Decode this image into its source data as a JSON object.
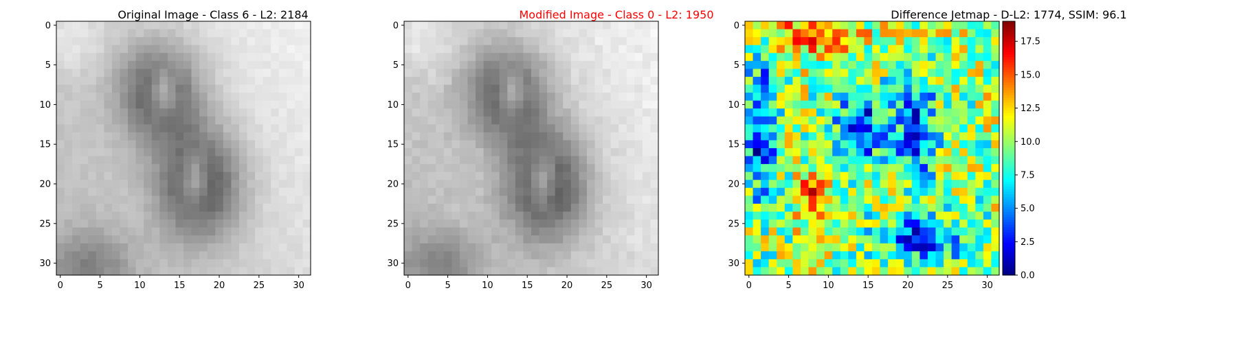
{
  "colors": {
    "title_normal": "#000000",
    "title_modified": "#ff0000"
  },
  "chart_data": [
    {
      "type": "heatmap",
      "title": "Original Image - Class 6 - L2: 2184",
      "colormap": "gray",
      "grid": false,
      "xlim": [
        -0.5,
        31.5
      ],
      "ylim": [
        31.5,
        -0.5
      ],
      "xticks": [
        0,
        5,
        10,
        15,
        20,
        25,
        30
      ],
      "yticks": [
        0,
        5,
        10,
        15,
        20,
        25,
        30
      ],
      "image_size": [
        32,
        32
      ],
      "value_range": [
        0,
        255
      ]
    },
    {
      "type": "heatmap",
      "title": "Modified Image - Class 0 - L2: 1950",
      "title_color": "#ff0000",
      "colormap": "gray",
      "grid": false,
      "xlim": [
        -0.5,
        31.5
      ],
      "ylim": [
        31.5,
        -0.5
      ],
      "xticks": [
        0,
        5,
        10,
        15,
        20,
        25,
        30
      ],
      "yticks": [
        0,
        5,
        10,
        15,
        20,
        25,
        30
      ],
      "image_size": [
        32,
        32
      ],
      "value_range": [
        0,
        255
      ]
    },
    {
      "type": "heatmap",
      "title": "Difference Jetmap - D-L2: 1774, SSIM: 96.1",
      "colormap": "jet",
      "grid": false,
      "xlim": [
        -0.5,
        31.5
      ],
      "ylim": [
        31.5,
        -0.5
      ],
      "xticks": [
        0,
        5,
        10,
        15,
        20,
        25,
        30
      ],
      "yticks": [
        0,
        5,
        10,
        15,
        20,
        25,
        30
      ],
      "image_size": [
        32,
        32
      ],
      "colorbar": {
        "range": [
          0,
          19
        ],
        "ticks": [
          "0.0",
          "2.5",
          "5.0",
          "7.5",
          "10.0",
          "12.5",
          "15.0",
          "17.5"
        ],
        "placement": "right"
      }
    }
  ]
}
